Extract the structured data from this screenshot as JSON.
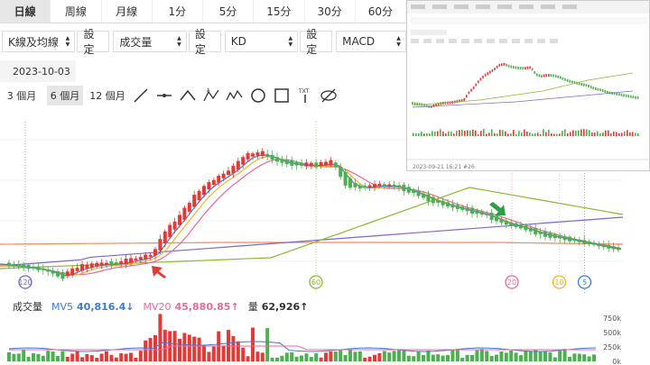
{
  "tabs": [
    "日線",
    "周線",
    "月線",
    "1分",
    "5分",
    "15分",
    "30分",
    "60分"
  ],
  "active_tab": "日線",
  "selectors": [
    {
      "label": "K線及均線",
      "btn": "設定"
    },
    {
      "label": "成交量",
      "btn": "設定"
    },
    {
      "label": "KD",
      "btn": "設定"
    },
    {
      "label": "MACD",
      "btn": ""
    }
  ],
  "date": "2023-10-03",
  "periods": [
    "3 個月",
    "6 個月",
    "12 個月"
  ],
  "active_period": "6 個月",
  "tools": [
    "line-tool-icon",
    "horizontal-line-icon",
    "wave-tool-icon",
    "abc-pattern-icon",
    "abcde-pattern-icon",
    "circle-tool-icon",
    "rectangle-tool-icon",
    "text-tool-icon",
    "hide-icon"
  ],
  "volume_panel": {
    "title": "成交量",
    "mv5_label": "MV5",
    "mv5_value": "40,816.4↓",
    "mv20_label": "MV20",
    "mv20_value": "45,880.85↑",
    "vol_label": "量",
    "vol_value": "62,926↑",
    "y_ticks": [
      "750k",
      "500k",
      "250k",
      "0k"
    ]
  },
  "markers": [
    {
      "label": "120",
      "color": "#7b68c9",
      "pos": 0.04
    },
    {
      "label": "60",
      "color": "#8cb82e",
      "pos": 0.5
    },
    {
      "label": "20",
      "color": "#e86aa0",
      "pos": 0.81
    },
    {
      "label": "10",
      "color": "#f0b429",
      "pos": 0.885
    },
    {
      "label": "5",
      "color": "#3a7bd5",
      "pos": 0.925
    }
  ],
  "colors": {
    "up": "#e53935",
    "down": "#4caf50",
    "ma5": "#3a7bd5",
    "ma10": "#f0b429",
    "ma20": "#e86aa0",
    "ma60": "#8cb82e",
    "ma120": "#7b68c9",
    "ma240": "#f08a5d",
    "arrow_red": "#e53935",
    "arrow_green": "#2e9e44"
  },
  "inset": {
    "date": "2023-09-21 16:21",
    "id": "#26"
  }
}
